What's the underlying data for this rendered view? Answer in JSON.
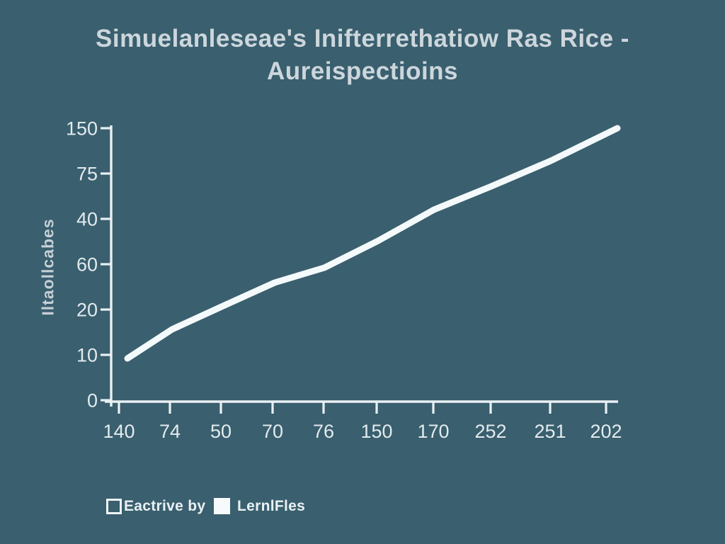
{
  "title": {
    "line1": "Simuelanleseae's Inifterrethatiow Ras Rice -",
    "line2": "Aureispectioins"
  },
  "colors": {
    "background": "#3a5f6e",
    "title_text": "#ccd6dc",
    "tick_text": "#e2ebef",
    "axis_line": "#e9f1f4",
    "series_line": "#f4fafc",
    "legend_text": "#e9f1f4"
  },
  "chart_data": {
    "type": "line",
    "title": "Simuelanleseae's Inifterrethatiow Ras Rice - Aureispectioins",
    "xlabel": "",
    "ylabel": "Iltaollcabes",
    "y_tick_labels": [
      "150",
      "75",
      "40",
      "60",
      "20",
      "10",
      "0"
    ],
    "categories": [
      "140",
      "74",
      "50",
      "70",
      "76",
      "150",
      "170",
      "252",
      "251",
      "202"
    ],
    "series": [
      {
        "name": "LernlFles",
        "values": [
          23,
          39,
          52,
          65,
          73,
          88,
          105,
          118,
          132,
          150
        ]
      }
    ],
    "ylim": [
      0,
      150
    ],
    "grid": false,
    "legend_position": "bottom-left",
    "legend": [
      {
        "label": "Eactrive by",
        "swatch": "outline"
      },
      {
        "label": "LernlFles",
        "swatch": "filled"
      }
    ]
  }
}
